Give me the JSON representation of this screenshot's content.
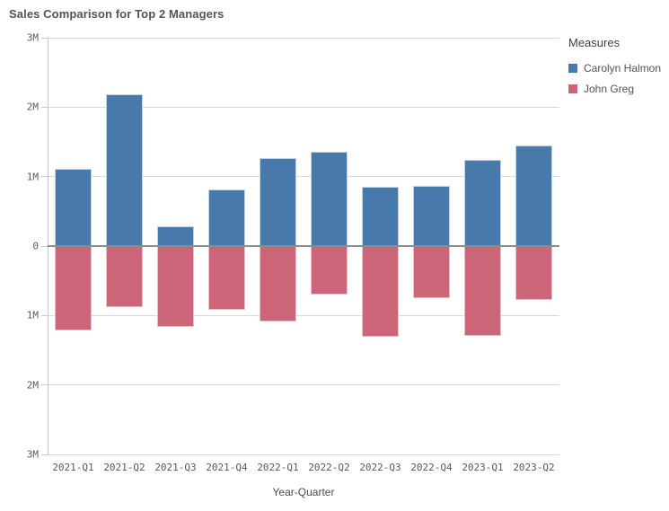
{
  "title": "Sales Comparison for Top 2 Managers",
  "legend": {
    "title": "Measures"
  },
  "colors": {
    "series_blue": "#4879ab",
    "series_rose": "#cb6577",
    "gridline": "#d9d9d9",
    "zero_line": "#8c8c8c",
    "tick_text": "#595959",
    "title_text": "#545454"
  },
  "chart_data": {
    "type": "bar",
    "subtype": "diverging-vertical",
    "title": "Sales Comparison for Top 2 Managers",
    "xlabel": "Year-Quarter",
    "ylabel": "",
    "unit": "M",
    "grid": true,
    "legend_position": "right",
    "categories": [
      "2021-Q1",
      "2021-Q2",
      "2021-Q3",
      "2021-Q4",
      "2022-Q1",
      "2022-Q2",
      "2022-Q3",
      "2022-Q4",
      "2023-Q1",
      "2023-Q2"
    ],
    "series": [
      {
        "name": "Carolyn Halmon",
        "color": "#4879ab",
        "direction": "up",
        "values_millions": [
          1.11,
          2.19,
          0.28,
          0.81,
          1.27,
          1.36,
          0.85,
          0.87,
          1.24,
          1.45
        ]
      },
      {
        "name": "John Greg",
        "color": "#cb6577",
        "direction": "down",
        "values_millions": [
          1.21,
          0.88,
          1.16,
          0.92,
          1.09,
          0.7,
          1.3,
          0.75,
          1.29,
          0.78
        ]
      }
    ],
    "y_axis": {
      "max_millions": 3,
      "min_millions": -3,
      "tick_values": [
        3,
        2,
        1,
        0,
        -1,
        -2,
        -3
      ],
      "tick_labels": [
        "3M",
        "2M",
        "1M",
        "0",
        "1M",
        "2M",
        "3M"
      ]
    }
  }
}
